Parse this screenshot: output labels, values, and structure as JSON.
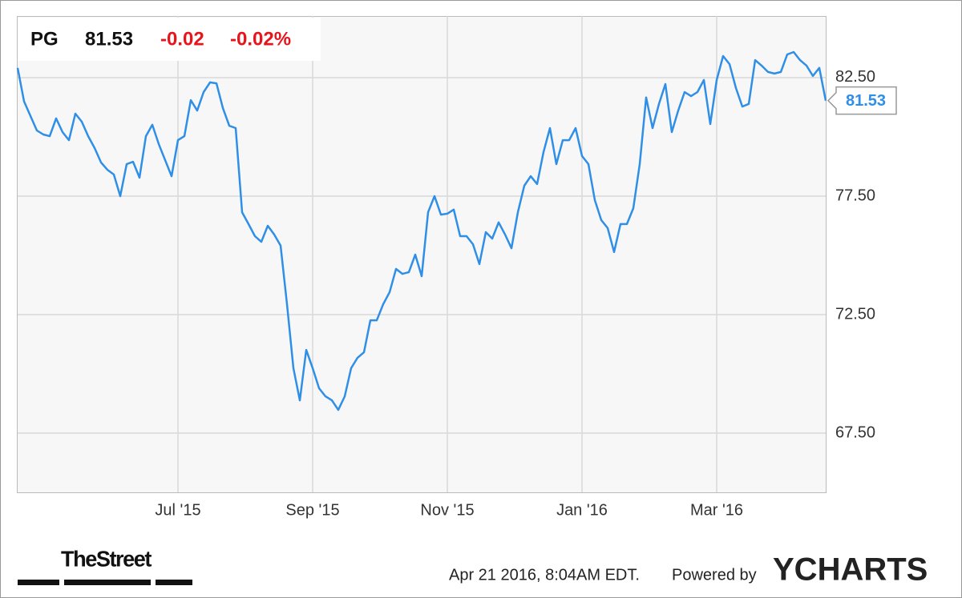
{
  "chart_data": {
    "type": "line",
    "ticker": "PG",
    "price": "81.53",
    "change": "-0.02",
    "change_percent": "-0.02%",
    "categories": [
      null,
      null,
      null,
      null,
      null,
      null,
      null,
      null,
      null,
      null,
      null,
      null,
      null,
      null,
      null,
      null,
      null,
      null,
      null,
      null,
      null,
      null,
      null,
      null,
      null,
      "Jul '15",
      null,
      null,
      null,
      null,
      null,
      null,
      null,
      null,
      null,
      null,
      null,
      null,
      null,
      null,
      null,
      null,
      null,
      null,
      null,
      null,
      "Sep '15",
      null,
      null,
      null,
      null,
      null,
      null,
      null,
      null,
      null,
      null,
      null,
      null,
      null,
      null,
      null,
      null,
      null,
      null,
      null,
      null,
      "Nov '15",
      null,
      null,
      null,
      null,
      null,
      null,
      null,
      null,
      null,
      null,
      null,
      null,
      null,
      null,
      null,
      null,
      null,
      null,
      null,
      null,
      "Jan '16",
      null,
      null,
      null,
      null,
      null,
      null,
      null,
      null,
      null,
      null,
      null,
      null,
      null,
      null,
      null,
      null,
      null,
      null,
      null,
      null,
      "Mar '16",
      null,
      null,
      null,
      null,
      null,
      null,
      null,
      null,
      null,
      null,
      null,
      null,
      null,
      null,
      null,
      null,
      null
    ],
    "series": [
      {
        "name": "PG",
        "color": "#2f8fe6",
        "values": [
          82.91,
          81.5,
          80.88,
          80.27,
          80.1,
          80.03,
          80.78,
          80.2,
          79.86,
          80.98,
          80.64,
          80.03,
          79.53,
          78.92,
          78.61,
          78.41,
          77.5,
          78.85,
          78.95,
          78.28,
          80.03,
          80.51,
          79.7,
          79.02,
          78.34,
          79.86,
          80.03,
          81.55,
          81.11,
          81.89,
          82.3,
          82.26,
          81.22,
          80.47,
          80.37,
          76.82,
          76.32,
          75.81,
          75.57,
          76.25,
          75.88,
          75.41,
          72.94,
          70.24,
          68.88,
          71.01,
          70.24,
          69.39,
          69.05,
          68.88,
          68.48,
          69.05,
          70.24,
          70.68,
          70.91,
          72.26,
          72.26,
          72.94,
          73.45,
          74.43,
          74.22,
          74.29,
          75.03,
          74.12,
          76.82,
          77.5,
          76.72,
          76.76,
          76.93,
          75.81,
          75.81,
          75.47,
          74.63,
          75.98,
          75.71,
          76.39,
          75.88,
          75.3,
          76.82,
          77.94,
          78.34,
          78.01,
          79.36,
          80.37,
          78.85,
          79.86,
          79.86,
          80.37,
          79.19,
          78.85,
          77.33,
          76.49,
          76.15,
          75.14,
          76.32,
          76.32,
          76.99,
          78.85,
          81.66,
          80.37,
          81.39,
          82.23,
          80.2,
          81.11,
          81.89,
          81.72,
          81.89,
          82.4,
          80.54,
          82.4,
          83.41,
          83.07,
          82.06,
          81.28,
          81.39,
          83.24,
          83.01,
          82.74,
          82.67,
          82.74,
          83.48,
          83.58,
          83.24,
          83.01,
          82.57,
          82.91,
          81.53
        ]
      }
    ],
    "ylim": [
      65,
      85.1
    ],
    "yticks": [
      {
        "value": 67.5,
        "label": "67.50"
      },
      {
        "value": 72.5,
        "label": "72.50"
      },
      {
        "value": 77.5,
        "label": "77.50"
      },
      {
        "value": 82.5,
        "label": "82.50"
      }
    ],
    "grid": true,
    "timestamp": "Apr 21 2016, 8:04AM EDT.",
    "powered_by": "Powered by",
    "brand": "YCHARTS",
    "source": "TheStreet"
  }
}
